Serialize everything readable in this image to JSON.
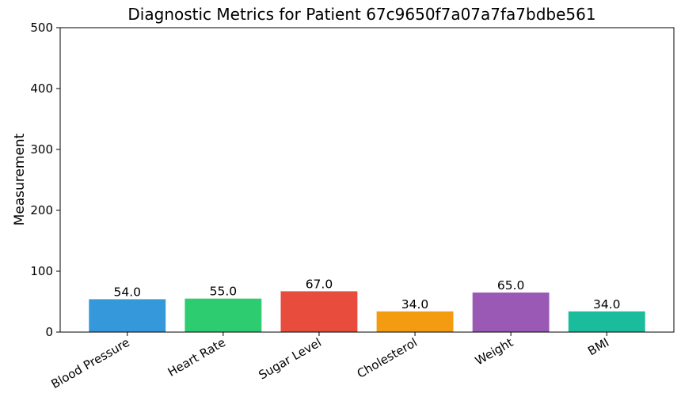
{
  "chart_data": {
    "type": "bar",
    "title": "Diagnostic Metrics for Patient 67c9650f7a07a7fa7bdbe561",
    "xlabel": "",
    "ylabel": "Measurement",
    "categories": [
      "Blood Pressure",
      "Heart Rate",
      "Sugar Level",
      "Cholesterol",
      "Weight",
      "BMI"
    ],
    "values": [
      54.0,
      55.0,
      67.0,
      34.0,
      65.0,
      34.0
    ],
    "value_labels": [
      "54.0",
      "55.0",
      "67.0",
      "34.0",
      "65.0",
      "34.0"
    ],
    "colors": [
      "#3498db",
      "#2ecc71",
      "#e74c3c",
      "#f39c12",
      "#9b59b6",
      "#1abc9c"
    ],
    "ylim": [
      0,
      500
    ],
    "yticks": [
      0,
      100,
      200,
      300,
      400,
      500
    ],
    "grid": false,
    "legend": "none"
  }
}
